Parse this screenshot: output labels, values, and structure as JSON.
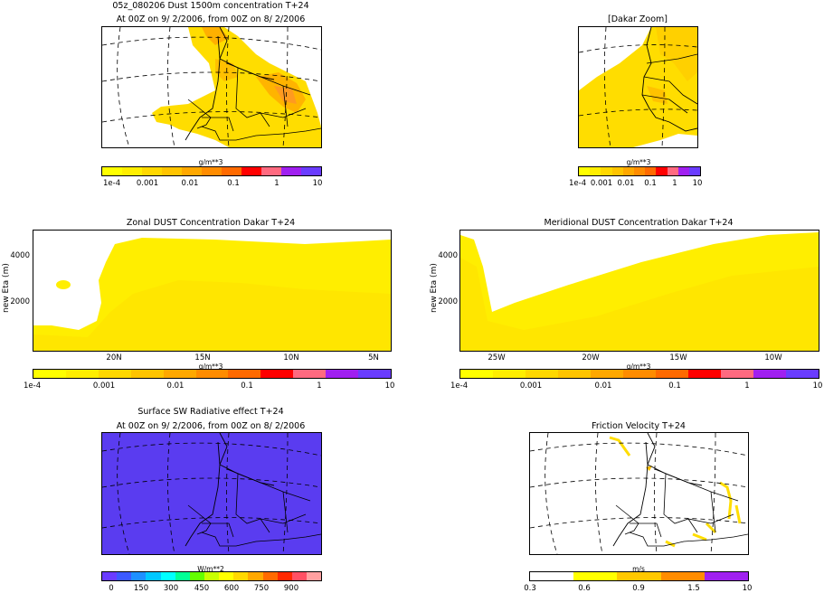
{
  "top_left": {
    "title": "05z_080206 Dust 1500m concentration T+24",
    "subtitle": "At 00Z on 9/ 2/2006, from 00Z on 8/ 2/2006",
    "unit": "g/m**3",
    "ticks": [
      "1e-4",
      "0.001",
      "0.01",
      "0.1",
      "1",
      "10"
    ]
  },
  "top_right": {
    "title": "[Dakar Zoom]",
    "unit": "g/m**3",
    "ticks": [
      "1e-4",
      "0.001",
      "0.01",
      "0.1",
      "1",
      "10"
    ]
  },
  "zonal": {
    "title": "Zonal DUST Concentration Dakar T+24",
    "ylabel": "new Eta (m)",
    "yticks": [
      "4000",
      "2000"
    ],
    "xticks": [
      "20N",
      "15N",
      "10N",
      "5N"
    ],
    "unit": "g/m**3",
    "ticks": [
      "1e-4",
      "0.001",
      "0.01",
      "0.1",
      "1",
      "10"
    ]
  },
  "meridional": {
    "title": "Meridional DUST Concentration Dakar T+24",
    "ylabel": "new Eta (m)",
    "yticks": [
      "4000",
      "2000"
    ],
    "xticks": [
      "25W",
      "20W",
      "15W",
      "10W"
    ],
    "unit": "g/m**3",
    "ticks": [
      "1e-4",
      "0.001",
      "0.01",
      "0.1",
      "1",
      "10"
    ]
  },
  "bottom_left": {
    "title": "Surface SW Radiative effect T+24",
    "subtitle": "At 00Z on 9/ 2/2006, from 00Z on 8/ 2/2006",
    "unit": "W/m**2",
    "ticks": [
      "0",
      "150",
      "300",
      "450",
      "600",
      "750",
      "900"
    ]
  },
  "bottom_right": {
    "title": "Friction Velocity T+24",
    "unit": "m/s",
    "ticks": [
      "0.3",
      "0.6",
      "0.9",
      "1.5",
      "10"
    ]
  },
  "colors": {
    "dust_scale": [
      "#ffff00",
      "#ffee00",
      "#ffd800",
      "#ffc400",
      "#ffa800",
      "#ff8c00",
      "#ff6a00",
      "#ff0000",
      "#ff6a80",
      "#a020f0",
      "#6a3cff"
    ],
    "sw_scale": [
      "#6a3cff",
      "#3c5aff",
      "#1e90ff",
      "#00c8ff",
      "#00ffff",
      "#00ff96",
      "#64ff00",
      "#c8ff00",
      "#ffff00",
      "#ffd800",
      "#ffa800",
      "#ff6a00",
      "#ff2800",
      "#ff5064",
      "#ffa0a0"
    ],
    "ustar_scale": [
      "#ffffff",
      "#ffff00",
      "#ffc800",
      "#ff8c00",
      "#a020f0"
    ],
    "dust_fill": "#ffdd00",
    "sw_fill": "#5a3cf0"
  },
  "chart_data": [
    {
      "type": "heatmap",
      "name": "dust_1500m_map",
      "title": "05z_080206 Dust 1500m concentration T+24",
      "colorbar_ticks": [
        0.0001,
        0.001,
        0.01,
        0.1,
        1,
        10
      ],
      "unit": "g/m**3"
    },
    {
      "type": "heatmap",
      "name": "dakar_zoom_map",
      "title": "[Dakar Zoom]",
      "colorbar_ticks": [
        0.0001,
        0.001,
        0.01,
        0.1,
        1,
        10
      ],
      "unit": "g/m**3"
    },
    {
      "type": "heatmap",
      "name": "zonal_cross_section",
      "title": "Zonal DUST Concentration Dakar T+24",
      "ylabel": "new Eta (m)",
      "x_ticks": [
        "20N",
        "15N",
        "10N",
        "5N"
      ],
      "y_ticks": [
        2000,
        4000
      ],
      "colorbar_ticks": [
        0.0001,
        0.001,
        0.01,
        0.1,
        1,
        10
      ]
    },
    {
      "type": "heatmap",
      "name": "meridional_cross_section",
      "title": "Meridional DUST Concentration Dakar T+24",
      "ylabel": "new Eta (m)",
      "x_ticks": [
        "25W",
        "20W",
        "15W",
        "10W"
      ],
      "y_ticks": [
        2000,
        4000
      ],
      "colorbar_ticks": [
        0.0001,
        0.001,
        0.01,
        0.1,
        1,
        10
      ]
    },
    {
      "type": "heatmap",
      "name": "sw_radiative_map",
      "title": "Surface SW Radiative effect T+24",
      "colorbar_ticks": [
        0,
        150,
        300,
        450,
        600,
        750,
        900
      ],
      "unit": "W/m**2"
    },
    {
      "type": "heatmap",
      "name": "friction_velocity_map",
      "title": "Friction Velocity T+24",
      "colorbar_ticks": [
        0.3,
        0.6,
        0.9,
        1.5,
        10
      ],
      "unit": "m/s"
    }
  ]
}
